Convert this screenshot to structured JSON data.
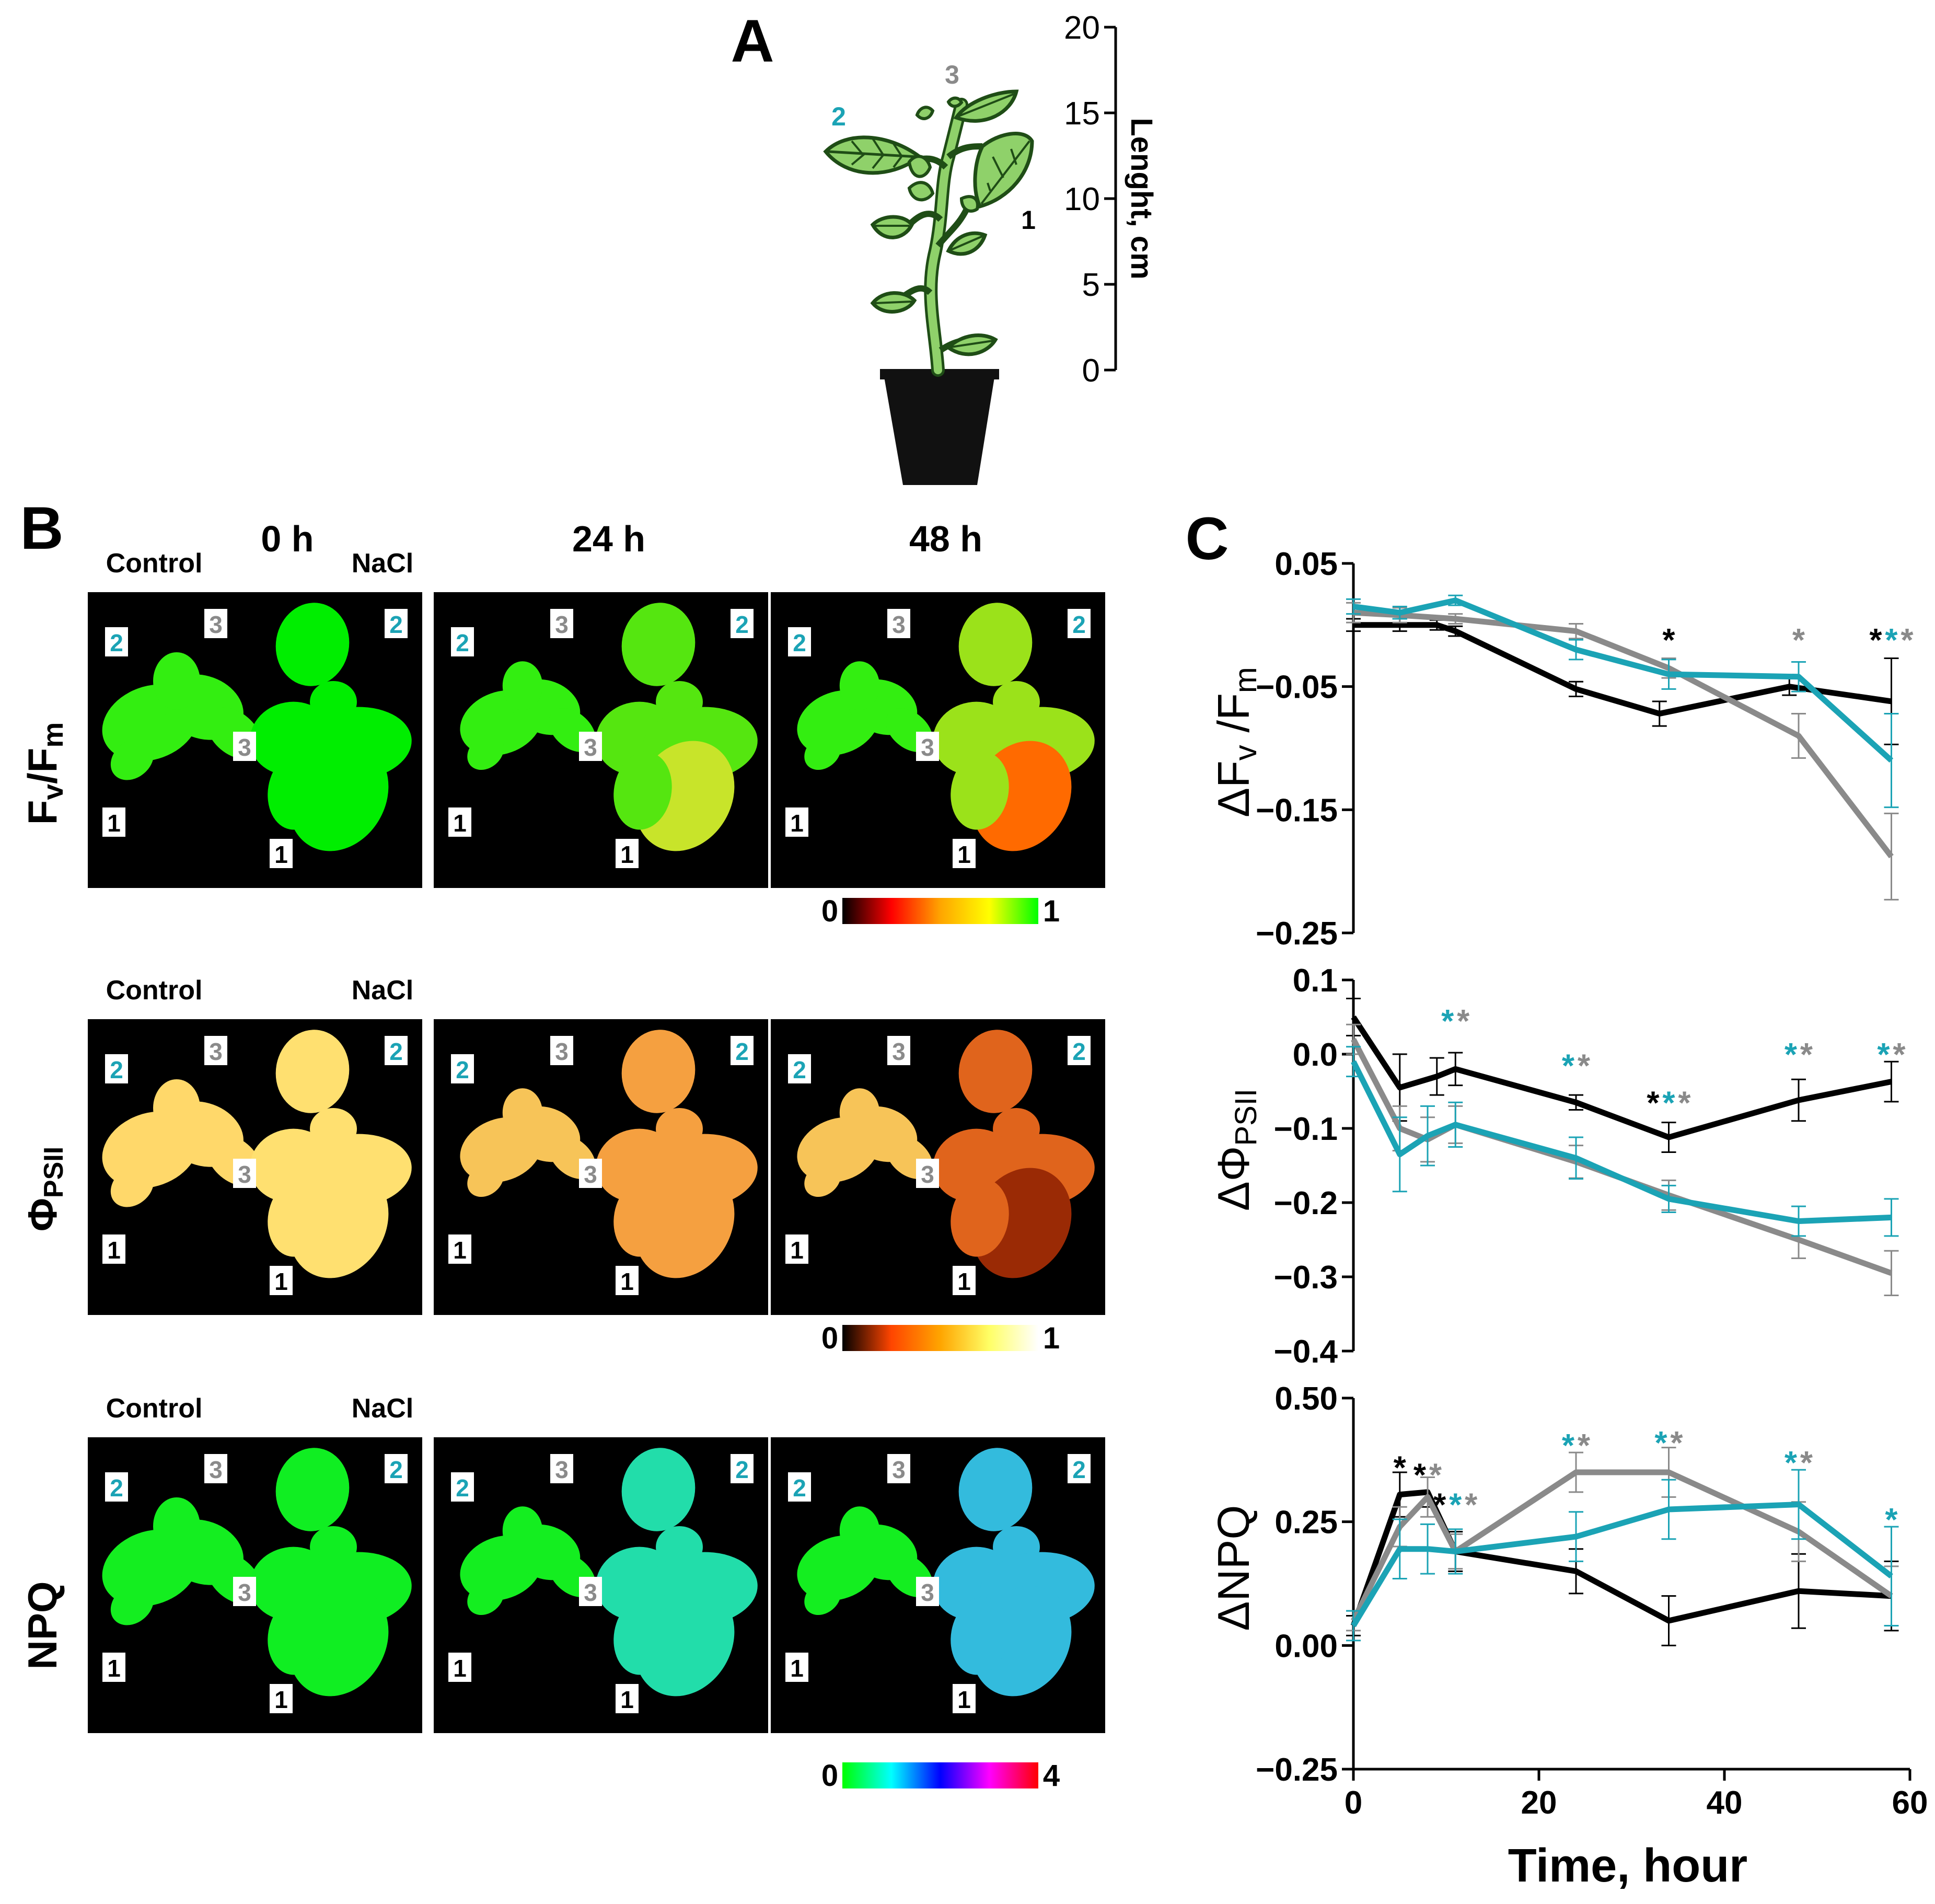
{
  "panels": {
    "a": {
      "letter": "A"
    },
    "b": {
      "letter": "B"
    },
    "c": {
      "letter": "C"
    }
  },
  "plant": {
    "leaf_labels": {
      "leaf1": "1",
      "leaf2": "2",
      "leaf3": "3"
    },
    "length_axis": {
      "label": "Lenght, cm",
      "ticks": [
        "0",
        "5",
        "10",
        "15",
        "20"
      ]
    }
  },
  "imaging": {
    "time_headers": [
      "0 h",
      "24 h",
      "48 h"
    ],
    "control_label": "Control",
    "nacl_label": "NaCl",
    "rows": [
      {
        "label_main": "F",
        "label_sub1": "v",
        "label_mid": "/F",
        "label_sub2": "m",
        "scale_min": "0",
        "scale_max": "1",
        "colormap": [
          "#000000",
          "#ff0000",
          "#ffa500",
          "#ffff00",
          "#00ff00"
        ]
      },
      {
        "label_main": "Φ",
        "label_sub1": "PSII",
        "scale_min": "0",
        "scale_max": "1",
        "colormap": [
          "#000000",
          "#ff4500",
          "#ffa500",
          "#ffff66",
          "#ffffff"
        ]
      },
      {
        "label_main": "NPQ",
        "scale_min": "0",
        "scale_max": "4",
        "colormap": [
          "#00ff00",
          "#00ffff",
          "#0000ff",
          "#ff00ff",
          "#ff0000"
        ]
      }
    ],
    "leaf_number_labels": [
      "1",
      "2",
      "3"
    ]
  },
  "colors": {
    "leaf1": "#000000",
    "leaf2": "#1ba3b5",
    "leaf3": "#8a8a8a",
    "leaf_fill": "#8fd16a",
    "leaf_vein": "#1f4d16",
    "pot": "#111111",
    "image_background": "#000000"
  },
  "chart_data": [
    {
      "type": "line",
      "title": "",
      "ylabel_prefix": "Δ",
      "ylabel_main": "F",
      "ylabel_sub1": "v",
      "ylabel_mid": " /F",
      "ylabel_sub2": "m",
      "xlabel": "",
      "xlim": [
        0,
        60
      ],
      "ylim": [
        -0.25,
        0.05
      ],
      "yticks": [
        0.05,
        -0.05,
        -0.15,
        -0.25
      ],
      "ytick_labels": [
        "0.05",
        "−0.05",
        "−0.15",
        "−0.25"
      ],
      "series": [
        {
          "leaf": "1",
          "x": [
            0,
            5,
            9,
            11,
            24,
            33,
            47,
            58
          ],
          "y": [
            0.0,
            0.0,
            0.0,
            -0.005,
            -0.052,
            -0.072,
            -0.05,
            -0.062
          ],
          "err": [
            0.005,
            0.005,
            0.004,
            0.004,
            0.006,
            0.01,
            0.007,
            0.035
          ]
        },
        {
          "leaf": "3",
          "x": [
            0,
            5,
            11,
            24,
            34,
            48,
            58
          ],
          "y": [
            0.01,
            0.008,
            0.005,
            -0.005,
            -0.035,
            -0.09,
            -0.188
          ],
          "err": [
            0.008,
            0.006,
            0.004,
            0.006,
            0.008,
            0.018,
            0.035
          ]
        },
        {
          "leaf": "2",
          "x": [
            0,
            5,
            11,
            24,
            34,
            48,
            58
          ],
          "y": [
            0.015,
            0.01,
            0.02,
            -0.02,
            -0.04,
            -0.042,
            -0.11
          ],
          "err": [
            0.006,
            0.005,
            0.004,
            0.008,
            0.012,
            0.012,
            0.038
          ]
        }
      ],
      "annotations": [
        {
          "x": 34,
          "y": -0.012,
          "marks": [
            "1"
          ]
        },
        {
          "x": 48,
          "y": -0.012,
          "marks": [
            "3"
          ]
        },
        {
          "x": 58,
          "y": -0.012,
          "marks": [
            "1",
            "2",
            "3"
          ]
        }
      ]
    },
    {
      "type": "line",
      "title": "",
      "ylabel_prefix": "Δ",
      "ylabel_main": "Φ",
      "ylabel_sub1": "PSII",
      "xlabel": "",
      "xlim": [
        0,
        60
      ],
      "ylim": [
        -0.4,
        0.1
      ],
      "yticks": [
        0.1,
        0.0,
        -0.1,
        -0.2,
        -0.3,
        -0.4
      ],
      "ytick_labels": [
        "0.1",
        "0.0",
        "−0.1",
        "−0.2",
        "−0.3",
        "−0.4"
      ],
      "series": [
        {
          "leaf": "1",
          "x": [
            0,
            5,
            9,
            11,
            24,
            34,
            48,
            58
          ],
          "y": [
            0.05,
            -0.045,
            -0.03,
            -0.02,
            -0.065,
            -0.112,
            -0.062,
            -0.037
          ],
          "err": [
            0.025,
            0.045,
            0.025,
            0.022,
            0.01,
            0.02,
            0.028,
            0.027
          ]
        },
        {
          "leaf": "3",
          "x": [
            0,
            5,
            8,
            11,
            24,
            34,
            48,
            58
          ],
          "y": [
            0.02,
            -0.1,
            -0.115,
            -0.095,
            -0.145,
            -0.19,
            -0.25,
            -0.295
          ],
          "err": [
            0.02,
            0.03,
            0.03,
            0.025,
            0.022,
            0.02,
            0.025,
            0.03
          ]
        },
        {
          "leaf": "2",
          "x": [
            0,
            5,
            8,
            11,
            24,
            34,
            48,
            58
          ],
          "y": [
            -0.01,
            -0.135,
            -0.11,
            -0.095,
            -0.14,
            -0.195,
            -0.225,
            -0.22
          ],
          "err": [
            0.02,
            0.05,
            0.04,
            0.03,
            0.028,
            0.018,
            0.02,
            0.025
          ]
        }
      ],
      "annotations": [
        {
          "x": 11,
          "y": 0.045,
          "marks": [
            "2",
            "3"
          ]
        },
        {
          "x": 24,
          "y": -0.015,
          "marks": [
            "2",
            "3"
          ]
        },
        {
          "x": 34,
          "y": -0.065,
          "marks": [
            "1",
            "2",
            "3"
          ]
        },
        {
          "x": 48,
          "y": 0.0,
          "marks": [
            "2",
            "3"
          ]
        },
        {
          "x": 58,
          "y": 0.0,
          "marks": [
            "2",
            "3"
          ]
        }
      ]
    },
    {
      "type": "line",
      "title": "",
      "ylabel_prefix": "Δ",
      "ylabel_main": "NPQ",
      "xlabel": "Time, hour",
      "xlim": [
        0,
        60
      ],
      "ylim": [
        -0.25,
        0.5
      ],
      "yticks": [
        0.5,
        0.25,
        0.0,
        -0.25
      ],
      "ytick_labels": [
        "0.50",
        "0.25",
        "0.00",
        "−0.25"
      ],
      "xticks": [
        0,
        20,
        40,
        60
      ],
      "xtick_labels": [
        "0",
        "20",
        "40",
        "60"
      ],
      "series": [
        {
          "leaf": "1",
          "x": [
            0,
            5,
            8,
            11,
            24,
            34,
            48,
            58
          ],
          "y": [
            0.04,
            0.305,
            0.31,
            0.19,
            0.15,
            0.05,
            0.11,
            0.1
          ],
          "err": [
            0.02,
            0.045,
            0.03,
            0.04,
            0.045,
            0.05,
            0.075,
            0.07
          ]
        },
        {
          "leaf": "3",
          "x": [
            0,
            5,
            8,
            11,
            24,
            34,
            48,
            58
          ],
          "y": [
            0.05,
            0.24,
            0.3,
            0.19,
            0.35,
            0.35,
            0.23,
            0.1
          ],
          "err": [
            0.02,
            0.04,
            0.04,
            0.035,
            0.04,
            0.05,
            0.06,
            0.06
          ]
        },
        {
          "leaf": "2",
          "x": [
            0,
            5,
            8,
            11,
            24,
            34,
            48,
            58
          ],
          "y": [
            0.04,
            0.195,
            0.195,
            0.19,
            0.22,
            0.275,
            0.285,
            0.14
          ],
          "err": [
            0.03,
            0.06,
            0.05,
            0.045,
            0.05,
            0.06,
            0.07,
            0.1
          ]
        }
      ],
      "annotations": [
        {
          "x": 5,
          "y": 0.36,
          "marks": [
            "1"
          ]
        },
        {
          "x": 8,
          "y": 0.345,
          "marks": [
            "1",
            "3"
          ]
        },
        {
          "x": 11,
          "y": 0.285,
          "marks": [
            "1",
            "2",
            "3"
          ]
        },
        {
          "x": 24,
          "y": 0.405,
          "marks": [
            "2",
            "3"
          ]
        },
        {
          "x": 34,
          "y": 0.41,
          "marks": [
            "2",
            "3"
          ]
        },
        {
          "x": 48,
          "y": 0.37,
          "marks": [
            "2",
            "3"
          ]
        },
        {
          "x": 58,
          "y": 0.255,
          "marks": [
            "2"
          ]
        }
      ]
    }
  ]
}
